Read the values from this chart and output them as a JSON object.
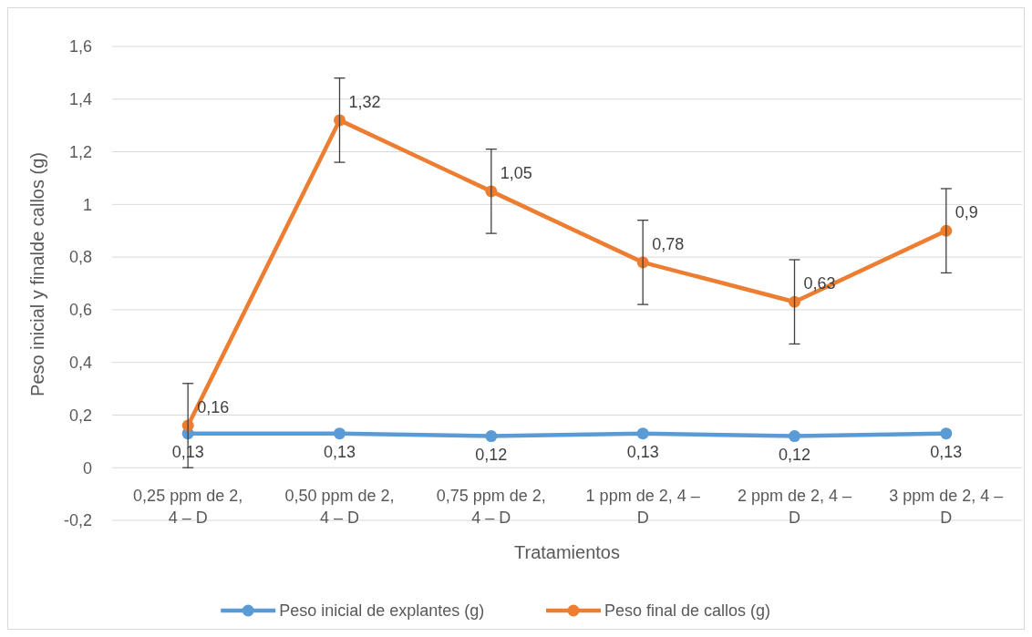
{
  "chart_data": {
    "type": "line",
    "categories": [
      "0,25 ppm de 2, 4 – D",
      "0,50 ppm de 2, 4 – D",
      "0,75 ppm de 2, 4 – D",
      "1 ppm de 2, 4 – D",
      "2 ppm de 2, 4 – D",
      "3 ppm de 2, 4 – D"
    ],
    "series": [
      {
        "name": "Peso inicial de explantes (g)",
        "color": "#5b9bd5",
        "values": [
          0.13,
          0.13,
          0.12,
          0.13,
          0.12,
          0.13
        ],
        "value_labels": [
          "0,13",
          "0,13",
          "0,12",
          "0,13",
          "0,12",
          "0,13"
        ]
      },
      {
        "name": "Peso final de callos (g)",
        "color": "#ed7d31",
        "values": [
          0.16,
          1.32,
          1.05,
          0.78,
          0.63,
          0.9
        ],
        "errors": [
          0.16,
          0.16,
          0.16,
          0.16,
          0.16,
          0.16
        ],
        "value_labels": [
          "0,16",
          "1,32",
          "1,05",
          "0,78",
          "0,63",
          "0,9"
        ]
      }
    ],
    "xlabel": "Tratamientos",
    "ylabel": "Peso inicial y finalde callos (g)",
    "ylim": [
      -0.2,
      1.6
    ],
    "yticks": [
      {
        "value": -0.2,
        "label": "-0,2"
      },
      0,
      {
        "value": 0.2,
        "label": "0,2"
      },
      {
        "value": 0.4,
        "label": "0,4"
      },
      {
        "value": 0.6,
        "label": "0,6"
      },
      {
        "value": 0.8,
        "label": "0,8"
      },
      1,
      {
        "value": 1.2,
        "label": "1,2"
      },
      {
        "value": 1.4,
        "label": "1,4"
      },
      {
        "value": 1.6,
        "label": "1,6"
      }
    ],
    "grid": "y",
    "legend": "bottom",
    "marker": "circle",
    "line_style": "solid"
  }
}
